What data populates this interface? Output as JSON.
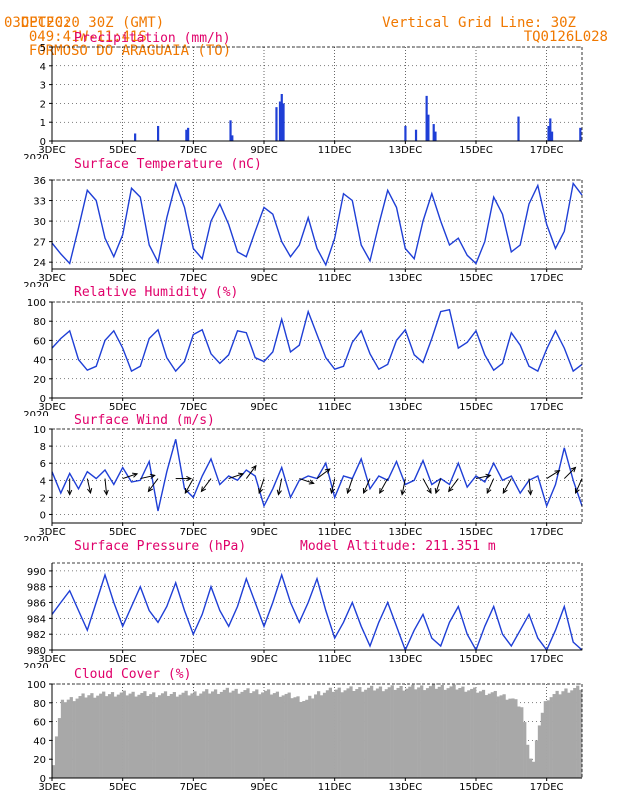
{
  "header": {
    "source": "CPTEC:",
    "coords": "049:41W-11:41S",
    "location": "FORMOSO DO ARAGUAIA (TO)",
    "date": "03DEC2020 30Z (GMT)",
    "grid_note": "Vertical Grid Line: 30Z",
    "model": "TQ0126L028"
  },
  "x_ticks": [
    "3DEC",
    "5DEC",
    "7DEC",
    "9DEC",
    "11DEC",
    "13DEC",
    "15DEC",
    "17DEC"
  ],
  "x_tick_days": [
    3,
    5,
    7,
    9,
    11,
    13,
    15,
    17
  ],
  "x_range_days": [
    3,
    18
  ],
  "year_label": "2020",
  "colors": {
    "header": "#f07800",
    "title": "#e0006a",
    "line": "#1f3fd6",
    "bar": "#1f3fd6",
    "cloud": "#a8a8a8",
    "grid": "#000000"
  },
  "chart_data": [
    {
      "type": "bar",
      "title": "Precipitation (mm/h)",
      "ylim": [
        0,
        5
      ],
      "yticks": [
        0,
        1,
        2,
        3,
        4,
        5
      ],
      "x_days": [
        5.35,
        6.0,
        6.8,
        6.85,
        8.05,
        8.1,
        9.35,
        9.45,
        9.5,
        9.55,
        13.0,
        13.3,
        13.6,
        13.65,
        13.8,
        13.85,
        16.2,
        17.05,
        17.1,
        17.15,
        17.95
      ],
      "values": [
        0.4,
        0.8,
        0.6,
        0.7,
        1.1,
        0.3,
        1.8,
        2.1,
        2.5,
        2.0,
        0.8,
        0.6,
        2.4,
        1.4,
        0.9,
        0.5,
        1.3,
        0.8,
        1.2,
        0.5,
        0.7
      ]
    },
    {
      "type": "line",
      "title": "Surface Temperature (nC)",
      "ylim": [
        23,
        36
      ],
      "yticks": [
        24,
        27,
        30,
        33,
        36
      ],
      "x_days": [
        3.0,
        3.25,
        3.5,
        3.75,
        4.0,
        4.25,
        4.5,
        4.75,
        5.0,
        5.25,
        5.5,
        5.75,
        6.0,
        6.25,
        6.5,
        6.75,
        7.0,
        7.25,
        7.5,
        7.75,
        8.0,
        8.25,
        8.5,
        8.75,
        9.0,
        9.25,
        9.5,
        9.75,
        10.0,
        10.25,
        10.5,
        10.75,
        11.0,
        11.25,
        11.5,
        11.75,
        12.0,
        12.25,
        12.5,
        12.75,
        13.0,
        13.25,
        13.5,
        13.75,
        14.0,
        14.25,
        14.5,
        14.75,
        15.0,
        15.25,
        15.5,
        15.75,
        16.0,
        16.25,
        16.5,
        16.75,
        17.0,
        17.25,
        17.5,
        17.75,
        18.0
      ],
      "values": [
        26.8,
        25.2,
        23.8,
        29.0,
        34.5,
        33.0,
        27.5,
        24.8,
        28.0,
        34.8,
        33.5,
        26.5,
        24.0,
        30.5,
        35.5,
        32.0,
        26.0,
        24.5,
        30.0,
        32.5,
        29.5,
        25.5,
        24.8,
        28.5,
        32.0,
        31.0,
        27.0,
        24.8,
        26.5,
        30.5,
        26.0,
        23.6,
        27.5,
        34.0,
        33.0,
        26.5,
        24.2,
        29.5,
        34.5,
        32.0,
        26.0,
        24.5,
        30.0,
        34.0,
        30.0,
        26.5,
        27.5,
        25.0,
        23.8,
        27.0,
        33.5,
        31.0,
        25.5,
        26.5,
        32.5,
        35.2,
        29.5,
        26.0,
        28.5,
        35.5,
        33.8
      ]
    },
    {
      "type": "line",
      "title": "Relative Humidity (%)",
      "ylim": [
        0,
        100
      ],
      "yticks": [
        0,
        20,
        40,
        60,
        80,
        100
      ],
      "x_days": [
        3.0,
        3.25,
        3.5,
        3.75,
        4.0,
        4.25,
        4.5,
        4.75,
        5.0,
        5.25,
        5.5,
        5.75,
        6.0,
        6.25,
        6.5,
        6.75,
        7.0,
        7.25,
        7.5,
        7.75,
        8.0,
        8.25,
        8.5,
        8.75,
        9.0,
        9.25,
        9.5,
        9.75,
        10.0,
        10.25,
        10.5,
        10.75,
        11.0,
        11.25,
        11.5,
        11.75,
        12.0,
        12.25,
        12.5,
        12.75,
        13.0,
        13.25,
        13.5,
        13.75,
        14.0,
        14.25,
        14.5,
        14.75,
        15.0,
        15.25,
        15.5,
        15.75,
        16.0,
        16.25,
        16.5,
        16.75,
        17.0,
        17.25,
        17.5,
        17.75,
        18.0
      ],
      "values": [
        52,
        62,
        70,
        40,
        29,
        33,
        60,
        70,
        52,
        28,
        33,
        62,
        71,
        42,
        28,
        38,
        66,
        71,
        46,
        36,
        45,
        70,
        68,
        42,
        38,
        48,
        82,
        48,
        55,
        90,
        66,
        42,
        30,
        33,
        58,
        70,
        46,
        30,
        35,
        60,
        71,
        45,
        37,
        62,
        90,
        92,
        52,
        58,
        70,
        45,
        29,
        36,
        68,
        55,
        33,
        28,
        51,
        70,
        52,
        28,
        35
      ]
    },
    {
      "type": "line",
      "title": "Surface Wind (m/s)",
      "ylim": [
        -1,
        10
      ],
      "yticks": [
        0,
        2,
        4,
        6,
        8,
        10
      ],
      "x_days": [
        3.0,
        3.25,
        3.5,
        3.75,
        4.0,
        4.25,
        4.5,
        4.75,
        5.0,
        5.25,
        5.5,
        5.75,
        6.0,
        6.25,
        6.5,
        6.75,
        7.0,
        7.25,
        7.5,
        7.75,
        8.0,
        8.25,
        8.5,
        8.75,
        9.0,
        9.25,
        9.5,
        9.75,
        10.0,
        10.25,
        10.5,
        10.75,
        11.0,
        11.25,
        11.5,
        11.75,
        12.0,
        12.25,
        12.5,
        12.75,
        13.0,
        13.25,
        13.5,
        13.75,
        14.0,
        14.25,
        14.5,
        14.75,
        15.0,
        15.25,
        15.5,
        15.75,
        16.0,
        16.25,
        16.5,
        16.75,
        17.0,
        17.25,
        17.5,
        17.75,
        18.0
      ],
      "values": [
        5.0,
        2.5,
        4.8,
        3.0,
        5.0,
        4.2,
        5.2,
        3.5,
        5.5,
        3.8,
        4.0,
        6.2,
        0.4,
        5.0,
        8.8,
        3.0,
        2.0,
        4.5,
        6.5,
        3.5,
        4.5,
        4.0,
        5.2,
        4.5,
        1.0,
        3.0,
        5.5,
        2.0,
        4.0,
        4.5,
        4.2,
        6.0,
        2.0,
        4.5,
        4.2,
        6.5,
        3.0,
        4.5,
        4.0,
        6.2,
        3.5,
        4.0,
        6.3,
        3.5,
        4.2,
        3.5,
        6.0,
        3.2,
        4.5,
        3.8,
        6.0,
        4.0,
        4.5,
        2.5,
        4.0,
        4.5,
        1.0,
        3.5,
        7.8,
        4.0,
        1.0
      ],
      "arrows": [
        {
          "day": 3.5,
          "dx": 0.0,
          "dy": -1.0
        },
        {
          "day": 4.0,
          "dx": 0.2,
          "dy": -0.9
        },
        {
          "day": 4.5,
          "dx": 0.1,
          "dy": -1.0
        },
        {
          "day": 5.0,
          "dx": 0.9,
          "dy": 0.3
        },
        {
          "day": 5.5,
          "dx": 0.9,
          "dy": 0.2
        },
        {
          "day": 6.0,
          "dx": -0.6,
          "dy": -0.8
        },
        {
          "day": 6.5,
          "dx": 0.95,
          "dy": 0.0
        },
        {
          "day": 7.0,
          "dx": -0.5,
          "dy": -0.9
        },
        {
          "day": 7.5,
          "dx": -0.6,
          "dy": -0.8
        },
        {
          "day": 8.0,
          "dx": 0.9,
          "dy": 0.3
        },
        {
          "day": 8.5,
          "dx": 0.6,
          "dy": 0.8
        },
        {
          "day": 9.0,
          "dx": -0.3,
          "dy": -0.9
        },
        {
          "day": 9.5,
          "dx": -0.2,
          "dy": -1.0
        },
        {
          "day": 10.0,
          "dx": 0.9,
          "dy": -0.3
        },
        {
          "day": 10.5,
          "dx": 0.8,
          "dy": 0.6
        },
        {
          "day": 11.0,
          "dx": -0.2,
          "dy": -0.9
        },
        {
          "day": 11.5,
          "dx": -0.3,
          "dy": -0.9
        },
        {
          "day": 12.0,
          "dx": -0.4,
          "dy": -0.9
        },
        {
          "day": 12.5,
          "dx": -0.5,
          "dy": -0.9
        },
        {
          "day": 13.0,
          "dx": -0.2,
          "dy": -1.0
        },
        {
          "day": 13.5,
          "dx": 0.5,
          "dy": -0.9
        },
        {
          "day": 14.0,
          "dx": -0.3,
          "dy": -0.9
        },
        {
          "day": 14.5,
          "dx": -0.6,
          "dy": -0.8
        },
        {
          "day": 15.0,
          "dx": 0.9,
          "dy": 0.2
        },
        {
          "day": 15.5,
          "dx": -0.4,
          "dy": -0.9
        },
        {
          "day": 16.0,
          "dx": -0.5,
          "dy": -0.9
        },
        {
          "day": 16.5,
          "dx": 0.1,
          "dy": -1.0
        },
        {
          "day": 17.0,
          "dx": 0.8,
          "dy": 0.5
        },
        {
          "day": 17.5,
          "dx": 0.7,
          "dy": 0.7
        },
        {
          "day": 18.0,
          "dx": -0.4,
          "dy": -0.9
        }
      ]
    },
    {
      "type": "line",
      "title": "Surface Pressure (hPa)",
      "annotation": "Model Altitude: 211.351 m",
      "ylim": [
        980,
        991
      ],
      "yticks": [
        980,
        982,
        984,
        986,
        988,
        990
      ],
      "x_days": [
        3.0,
        3.25,
        3.5,
        3.75,
        4.0,
        4.25,
        4.5,
        4.75,
        5.0,
        5.25,
        5.5,
        5.75,
        6.0,
        6.25,
        6.5,
        6.75,
        7.0,
        7.25,
        7.5,
        7.75,
        8.0,
        8.25,
        8.5,
        8.75,
        9.0,
        9.25,
        9.5,
        9.75,
        10.0,
        10.25,
        10.5,
        10.75,
        11.0,
        11.25,
        11.5,
        11.75,
        12.0,
        12.25,
        12.5,
        12.75,
        13.0,
        13.25,
        13.5,
        13.75,
        14.0,
        14.25,
        14.5,
        14.75,
        15.0,
        15.25,
        15.5,
        15.75,
        16.0,
        16.25,
        16.5,
        16.75,
        17.0,
        17.25,
        17.5,
        17.75,
        18.0
      ],
      "values": [
        984.5,
        986.0,
        987.5,
        985.0,
        982.5,
        986.0,
        989.5,
        986.0,
        983.0,
        985.5,
        988.0,
        985.0,
        983.5,
        985.5,
        988.5,
        985.0,
        982.0,
        984.5,
        988.0,
        985.0,
        983.0,
        985.5,
        989.0,
        986.0,
        983.0,
        986.0,
        989.5,
        986.0,
        983.5,
        986.0,
        989.0,
        985.0,
        981.5,
        983.5,
        986.0,
        983.0,
        980.5,
        983.5,
        986.0,
        983.0,
        980.0,
        982.5,
        984.5,
        981.5,
        980.5,
        983.5,
        985.5,
        982.0,
        980.0,
        983.0,
        985.5,
        982.0,
        980.5,
        982.5,
        984.5,
        981.5,
        980.0,
        982.5,
        985.5,
        981.0,
        980.0
      ]
    },
    {
      "type": "bar",
      "title": "Cloud Cover (%)",
      "ylim": [
        0,
        100
      ],
      "yticks": [
        0,
        20,
        40,
        60,
        80,
        100
      ],
      "x_range_days": [
        3,
        18
      ],
      "count": 180,
      "anchor_days": [
        3.0,
        3.1,
        3.3,
        4.0,
        5.0,
        6.0,
        7.0,
        7.5,
        8.0,
        9.0,
        9.7,
        10.2,
        10.5,
        11.0,
        12.0,
        13.0,
        14.0,
        14.5,
        15.0,
        15.5,
        16.0,
        16.3,
        16.45,
        16.6,
        16.8,
        17.0,
        17.5,
        18.0
      ],
      "anchor_values": [
        0,
        40,
        82,
        88,
        90,
        89,
        90,
        92,
        93,
        92,
        88,
        82,
        90,
        94,
        95,
        96,
        97,
        96,
        93,
        90,
        85,
        75,
        40,
        10,
        60,
        85,
        93,
        96
      ]
    }
  ]
}
